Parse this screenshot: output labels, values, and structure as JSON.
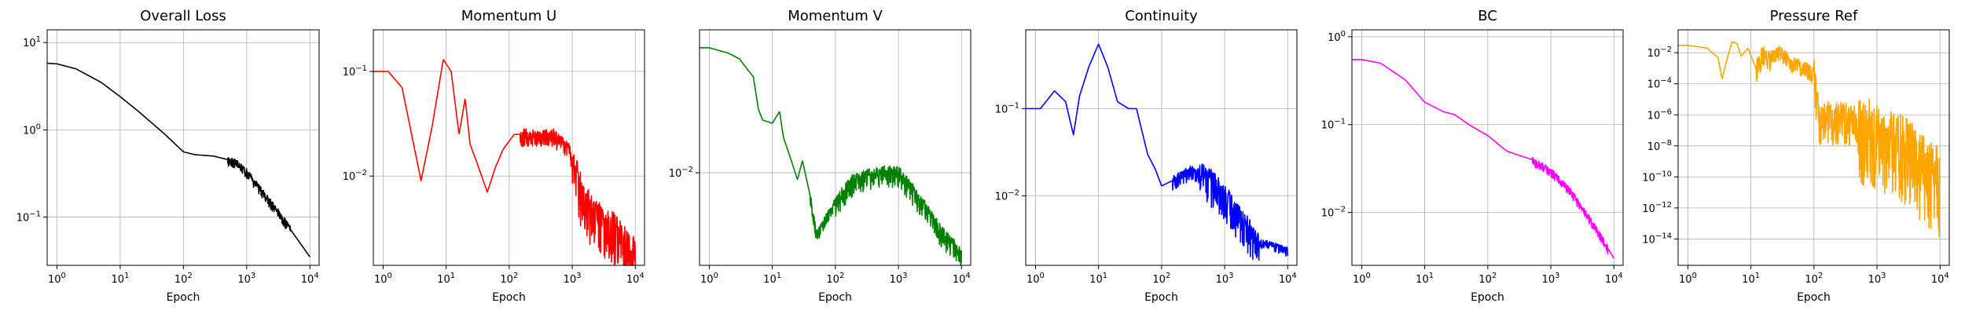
{
  "chart_data": [
    {
      "type": "line",
      "title": "Overall Loss",
      "xlabel": "Epoch",
      "ylabel": "",
      "xscale": "log",
      "yscale": "log",
      "xlim": [
        0.7,
        14000
      ],
      "ylim": [
        0.028,
        14
      ],
      "xticks": [
        1,
        10,
        100,
        1000,
        10000
      ],
      "yticks": [
        0.1,
        1,
        10
      ],
      "grid": true,
      "color": "#000000",
      "noise": [
        {
          "from": 500,
          "to": 5000,
          "amp": 0.08
        }
      ],
      "x": [
        0.7,
        1,
        2,
        5,
        10,
        20,
        50,
        100,
        150,
        300,
        700,
        1000,
        3000,
        10000
      ],
      "y": [
        5.8,
        5.7,
        5,
        3.5,
        2.4,
        1.6,
        0.9,
        0.56,
        0.52,
        0.5,
        0.43,
        0.33,
        0.12,
        0.035
      ]
    },
    {
      "type": "line",
      "title": "Momentum U",
      "xlabel": "Epoch",
      "ylabel": "",
      "xscale": "log",
      "yscale": "log",
      "xlim": [
        0.7,
        14000
      ],
      "ylim": [
        0.0014,
        0.25
      ],
      "xticks": [
        1,
        10,
        100,
        1000,
        10000
      ],
      "yticks": [
        0.01,
        0.1
      ],
      "grid": true,
      "color": "#ff0000",
      "noise": [
        {
          "from": 150,
          "to": 1000,
          "amp": 0.12
        },
        {
          "from": 1000,
          "to": 10000,
          "amp": 0.35
        }
      ],
      "x": [
        0.7,
        1.2,
        2,
        4,
        6,
        9,
        12,
        16,
        20,
        24,
        30,
        45,
        60,
        80,
        120,
        200,
        500,
        900,
        1500,
        2500,
        5000,
        10000
      ],
      "y": [
        0.1,
        0.1,
        0.07,
        0.009,
        0.03,
        0.13,
        0.1,
        0.025,
        0.055,
        0.02,
        0.014,
        0.007,
        0.012,
        0.018,
        0.025,
        0.025,
        0.025,
        0.018,
        0.006,
        0.004,
        0.003,
        0.0018
      ]
    },
    {
      "type": "line",
      "title": "Momentum V",
      "xlabel": "Epoch",
      "ylabel": "",
      "xscale": "log",
      "yscale": "log",
      "xlim": [
        0.7,
        14000
      ],
      "ylim": [
        0.0025,
        0.085
      ],
      "xticks": [
        1,
        10,
        100,
        1000,
        10000
      ],
      "yticks": [
        0.01
      ],
      "grid": true,
      "color": "#008000",
      "noise": [
        {
          "from": 40,
          "to": 100,
          "amp": 0.06
        },
        {
          "from": 100,
          "to": 10000,
          "amp": 0.1
        }
      ],
      "x": [
        0.7,
        1,
        2,
        3,
        5,
        6,
        7,
        10,
        13,
        15,
        20,
        25,
        30,
        40,
        50,
        60,
        100,
        200,
        500,
        1000,
        2000,
        5000,
        10000
      ],
      "y": [
        0.065,
        0.065,
        0.06,
        0.055,
        0.042,
        0.026,
        0.022,
        0.021,
        0.025,
        0.017,
        0.012,
        0.009,
        0.012,
        0.007,
        0.004,
        0.0045,
        0.0065,
        0.009,
        0.01,
        0.01,
        0.007,
        0.004,
        0.003
      ]
    },
    {
      "type": "line",
      "title": "Continuity",
      "xlabel": "Epoch",
      "ylabel": "",
      "xscale": "log",
      "yscale": "log",
      "xlim": [
        0.7,
        14000
      ],
      "ylim": [
        0.0016,
        0.8
      ],
      "xticks": [
        1,
        10,
        100,
        1000,
        10000
      ],
      "yticks": [
        0.01,
        0.1
      ],
      "grid": true,
      "color": "#0000ff",
      "noise": [
        {
          "from": 150,
          "to": 400,
          "amp": 0.12
        },
        {
          "from": 400,
          "to": 3500,
          "amp": 0.3
        },
        {
          "from": 3500,
          "to": 10000,
          "amp": 0.08
        }
      ],
      "x": [
        0.7,
        1.2,
        2,
        3,
        4,
        5,
        7,
        10,
        14,
        20,
        30,
        40,
        60,
        80,
        100,
        150,
        300,
        600,
        1000,
        2000,
        3500,
        5000,
        10000
      ],
      "y": [
        0.1,
        0.1,
        0.16,
        0.12,
        0.05,
        0.14,
        0.3,
        0.55,
        0.3,
        0.12,
        0.1,
        0.1,
        0.03,
        0.02,
        0.013,
        0.015,
        0.02,
        0.015,
        0.01,
        0.005,
        0.003,
        0.0028,
        0.0024
      ]
    },
    {
      "type": "line",
      "title": "BC",
      "xlabel": "Epoch",
      "ylabel": "",
      "xscale": "log",
      "yscale": "log",
      "xlim": [
        0.7,
        14000
      ],
      "ylim": [
        0.0025,
        1.2
      ],
      "xticks": [
        1,
        10,
        100,
        1000,
        10000
      ],
      "yticks": [
        0.01,
        0.1,
        1
      ],
      "grid": true,
      "color": "#ff00ff",
      "noise": [
        {
          "from": 500,
          "to": 8000,
          "amp": 0.07
        }
      ],
      "x": [
        0.7,
        1,
        2,
        5,
        10,
        20,
        30,
        50,
        100,
        200,
        500,
        1000,
        2000,
        5000,
        10000
      ],
      "y": [
        0.55,
        0.55,
        0.5,
        0.32,
        0.18,
        0.14,
        0.13,
        0.1,
        0.075,
        0.05,
        0.04,
        0.03,
        0.018,
        0.007,
        0.003
      ]
    },
    {
      "type": "line",
      "title": "Pressure Ref",
      "xlabel": "Epoch",
      "ylabel": "",
      "xscale": "log",
      "yscale": "log",
      "xlim": [
        0.7,
        14000
      ],
      "ylim": [
        2e-16,
        0.3
      ],
      "xticks": [
        1,
        10,
        100,
        1000,
        10000
      ],
      "yticks": [
        1e-14,
        1e-12,
        1e-10,
        1e-08,
        1e-06,
        0.0001,
        0.01
      ],
      "grid": true,
      "color": "#ffa500",
      "noise": [
        {
          "from": 12,
          "to": 30,
          "amp": 1.0
        },
        {
          "from": 30,
          "to": 100,
          "amp": 0.8
        },
        {
          "from": 100,
          "to": 500,
          "amp": 2.0
        },
        {
          "from": 500,
          "to": 10000,
          "amp": 4.0
        }
      ],
      "x": [
        0.7,
        1,
        2,
        3,
        3.5,
        4,
        5,
        6,
        7,
        9,
        12,
        15,
        20,
        30,
        50,
        80,
        100,
        120,
        150,
        300,
        1000,
        3000,
        10000
      ],
      "y": [
        0.03,
        0.03,
        0.02,
        0.005,
        0.0002,
        0.002,
        0.05,
        0.04,
        0.006,
        0.02,
        0.001,
        0.01,
        0.005,
        0.01,
        0.002,
        0.001,
        0.0005,
        1e-06,
        1e-06,
        1e-06,
        1e-07,
        1e-08,
        1e-10
      ]
    }
  ]
}
